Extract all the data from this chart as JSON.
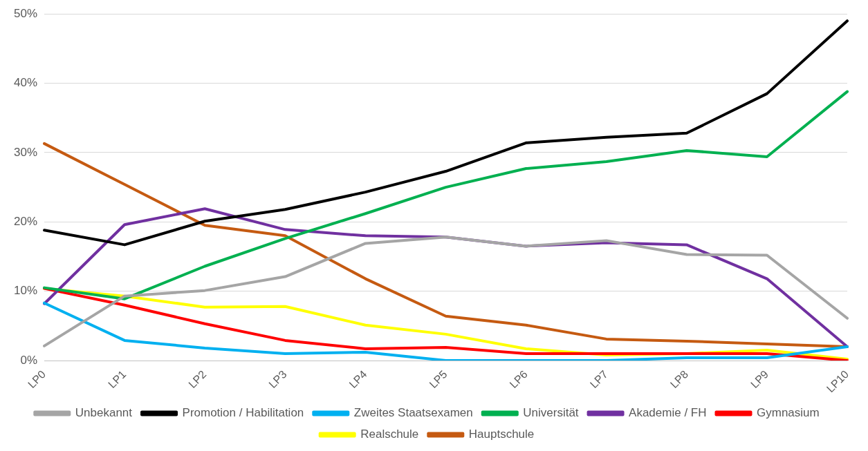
{
  "chart_data": {
    "type": "line",
    "categories": [
      "LP0",
      "LP1",
      "LP2",
      "LP3",
      "LP4",
      "LP5",
      "LP6",
      "LP7",
      "LP8",
      "LP9",
      "LP10"
    ],
    "ylim": [
      0,
      50
    ],
    "yticks": [
      {
        "value": 0,
        "label": "0%"
      },
      {
        "value": 10,
        "label": "10%"
      },
      {
        "value": 20,
        "label": "20%"
      },
      {
        "value": 30,
        "label": "30%"
      },
      {
        "value": 40,
        "label": "40%"
      },
      {
        "value": 50,
        "label": "50%"
      }
    ],
    "grid": "y",
    "legend": "bottom",
    "marker": "none",
    "line_style": "solid",
    "series": [
      {
        "name": "Hauptschule",
        "color": "#c55a11",
        "values": [
          31.3,
          25.4,
          19.5,
          18.0,
          11.8,
          6.4,
          5.1,
          3.1,
          2.8,
          2.4,
          2.0
        ]
      },
      {
        "name": "Realschule",
        "color": "#ffff00",
        "values": [
          10.4,
          9.3,
          7.7,
          7.8,
          5.1,
          3.8,
          1.7,
          0.8,
          1.0,
          1.5,
          0.2
        ]
      },
      {
        "name": "Gymnasium",
        "color": "#ff0000",
        "values": [
          10.4,
          8.0,
          5.3,
          2.9,
          1.7,
          1.9,
          1.0,
          1.0,
          1.0,
          1.0,
          0.0
        ]
      },
      {
        "name": "Akademie / FH",
        "color": "#7030a0",
        "values": [
          8.2,
          19.6,
          21.9,
          18.9,
          18.0,
          17.8,
          16.5,
          17.0,
          16.7,
          11.8,
          2.0
        ]
      },
      {
        "name": "Universität",
        "color": "#00b050",
        "values": [
          10.5,
          8.9,
          13.6,
          17.6,
          21.2,
          25.0,
          27.7,
          28.7,
          30.3,
          29.4,
          38.8
        ]
      },
      {
        "name": "Zweites Staatsexamen",
        "color": "#00b0f0",
        "values": [
          8.3,
          2.9,
          1.8,
          1.0,
          1.2,
          0.0,
          0.0,
          0.0,
          0.4,
          0.4,
          2.0
        ]
      },
      {
        "name": "Promotion / Habilitation",
        "color": "#000000",
        "values": [
          18.8,
          16.7,
          20.1,
          21.8,
          24.3,
          27.3,
          31.4,
          32.2,
          32.8,
          38.5,
          49.0
        ]
      },
      {
        "name": "Unbekannt",
        "color": "#a5a5a5",
        "values": [
          2.1,
          9.3,
          10.1,
          12.1,
          16.9,
          17.8,
          16.5,
          17.3,
          15.3,
          15.2,
          6.1
        ]
      }
    ]
  }
}
